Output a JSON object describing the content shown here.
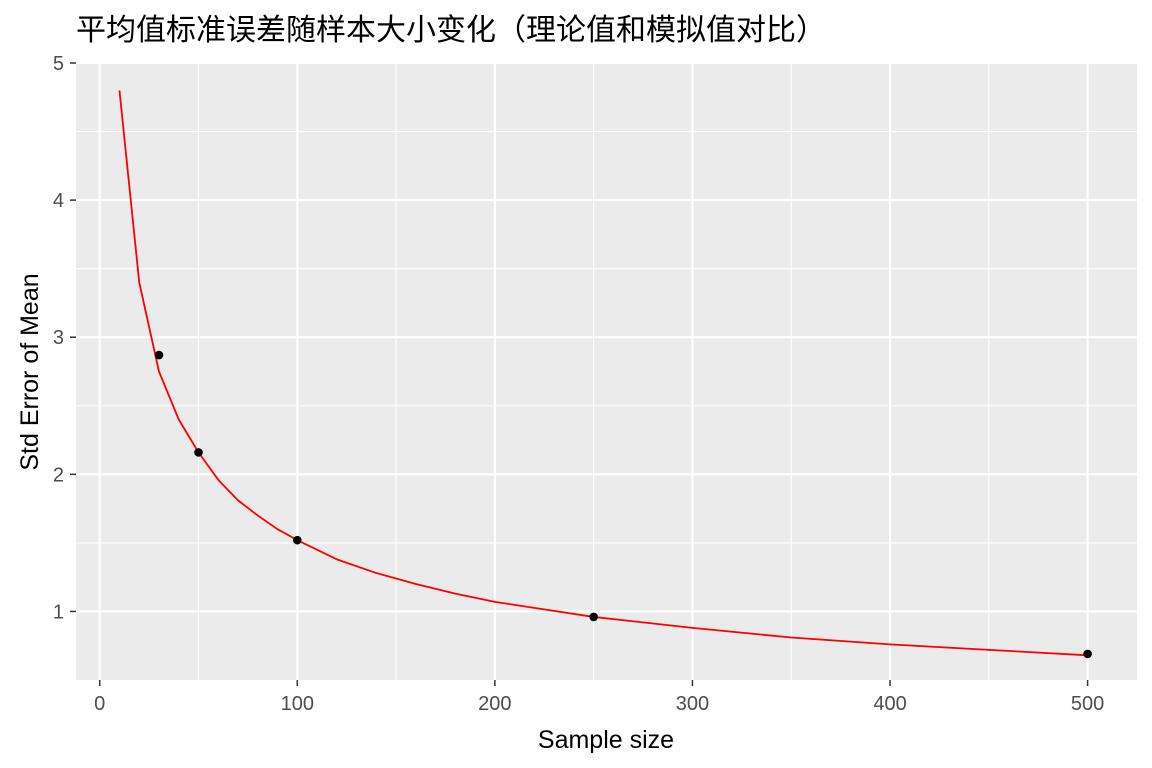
{
  "chart_data": {
    "type": "line",
    "title": "平均值标准误差随样本大小变化（理论值和模拟值对比）",
    "xlabel": "Sample size",
    "ylabel": "Std Error of Mean",
    "xlim": [
      -12,
      525
    ],
    "ylim": [
      0.5,
      5.0
    ],
    "xticks": [
      0,
      100,
      200,
      300,
      400,
      500
    ],
    "yticks": [
      1,
      2,
      3,
      4,
      5
    ],
    "grid": true,
    "background": "#ebebeb",
    "grid_color": "#ffffff",
    "series": [
      {
        "kind": "line",
        "color": "#ff0000",
        "x": [
          10,
          20,
          30,
          40,
          50,
          60,
          70,
          80,
          90,
          100,
          120,
          140,
          160,
          180,
          200,
          250,
          300,
          350,
          400,
          450,
          500
        ],
        "y": [
          4.8,
          3.4,
          2.75,
          2.4,
          2.16,
          1.96,
          1.81,
          1.7,
          1.6,
          1.52,
          1.38,
          1.28,
          1.2,
          1.13,
          1.07,
          0.96,
          0.88,
          0.81,
          0.76,
          0.72,
          0.68
        ]
      },
      {
        "kind": "points",
        "color": "#000000",
        "x": [
          30,
          50,
          100,
          250,
          500
        ],
        "y": [
          2.87,
          2.16,
          1.52,
          0.96,
          0.69
        ]
      }
    ]
  }
}
